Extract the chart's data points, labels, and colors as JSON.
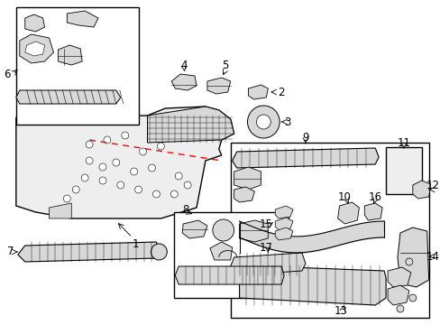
{
  "bg_color": "#ffffff",
  "line_color": "#000000",
  "gray_fill": "#d8d8d8",
  "light_gray": "#eeeeee",
  "red_color": "#ff0000",
  "label_fs": 8.5,
  "figsize": [
    4.89,
    3.6
  ],
  "dpi": 100
}
